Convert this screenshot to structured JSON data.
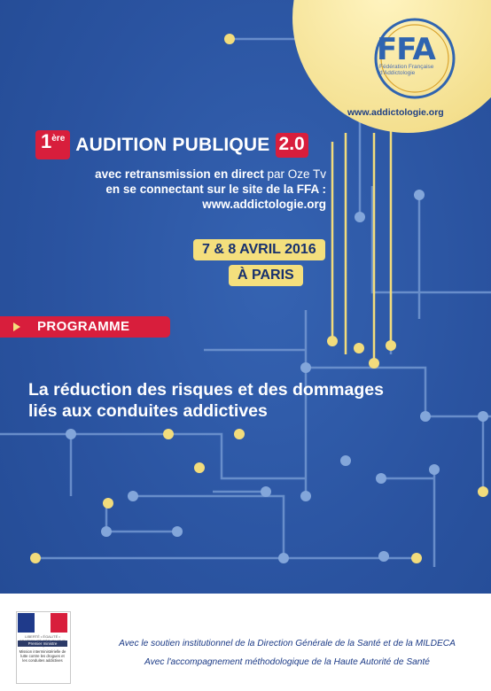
{
  "logo": {
    "mark": "FFA",
    "subtitle": "Fédération Française d'Addictologie",
    "website": "www.addictologie.org"
  },
  "headline": {
    "number": "1",
    "superscript": "ère",
    "text": "AUDITION PUBLIQUE",
    "version": "2.0"
  },
  "broadcast": {
    "line1_bold": "avec retransmission en direct",
    "line1_light": "par Oze Tv",
    "line2": "en se connectant sur le site de la FFA :",
    "line3": "www.addictologie.org"
  },
  "event": {
    "dates": "7 & 8 AVRIL 2016",
    "city": "À PARIS"
  },
  "programme_label": "PROGRAMME",
  "title": {
    "line1": "La réduction des risques et des dommages",
    "line2": "liés aux conduites addictives"
  },
  "footer": {
    "republic": "LIBERTÉ • ÉGALITÉ • FRATERNITÉ RÉPUBLIQUE FRANÇAISE",
    "premier_ministre": "Premier ministre",
    "mission": "Mission interministérielle de lutte contre les drogues et les conduites addictives",
    "support_line1": "Avec le soutien institutionnel de la Direction Générale de la Santé et de la MILDECA",
    "support_line2": "Avec l'accompagnement méthodologique de la Haute Autorité de Santé"
  },
  "colors": {
    "background": "#2c58a6",
    "red": "#d81e3c",
    "yellow": "#f4df7d",
    "circuit_line": "#6f94cf",
    "circuit_yellow": "#f2dc7c"
  }
}
